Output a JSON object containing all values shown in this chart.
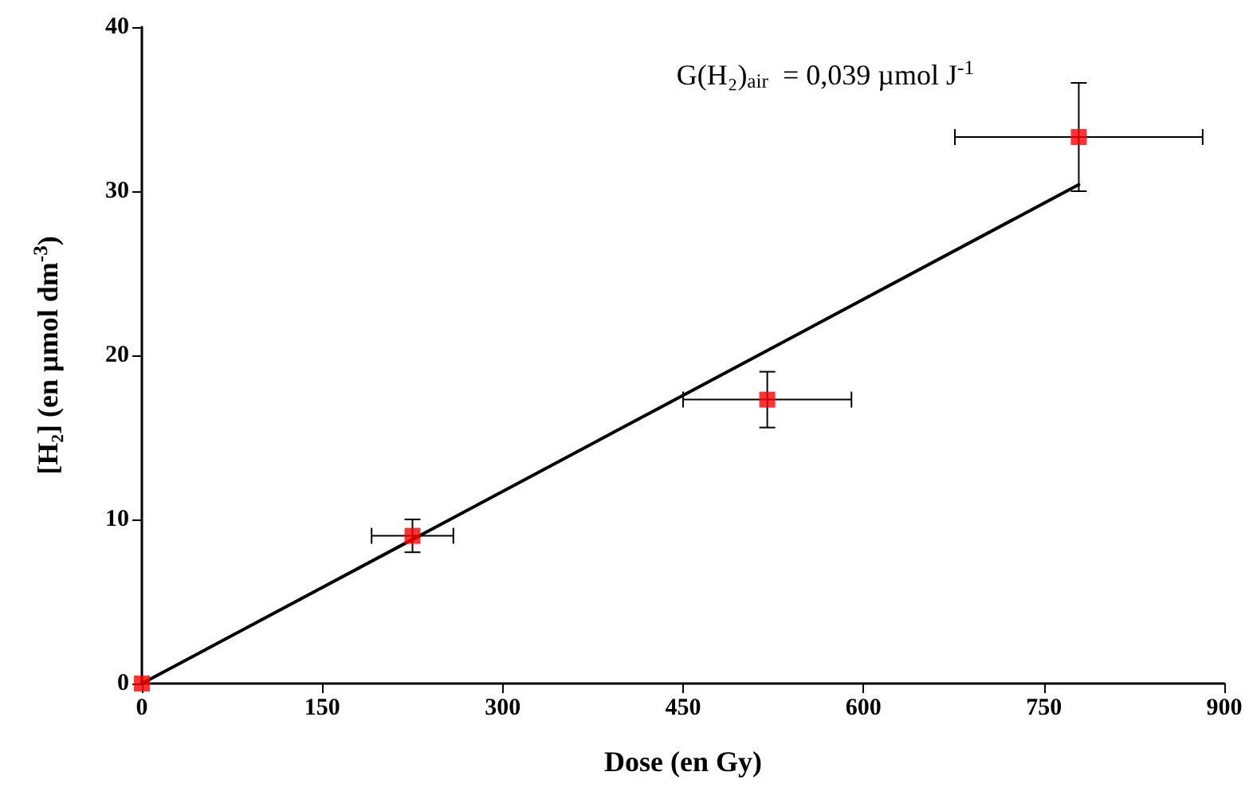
{
  "chart_data": {
    "type": "scatter",
    "xlabel": "Dose (en Gy)",
    "ylabel": "[H₂] (en µmol dm$^{-3}$)",
    "annotations": [
      "G(H₂)$_{air}$  = 0,039 µmol J$^{-1}$"
    ],
    "xlim": [
      0,
      900
    ],
    "xticks": [
      0,
      150,
      300,
      450,
      600,
      750,
      900
    ],
    "ylim": [
      0,
      40
    ],
    "yticks": [
      0,
      10,
      20,
      30,
      40
    ],
    "grid": false,
    "legend": false,
    "marker": "square",
    "series": [
      {
        "type": "line",
        "color": "#000000",
        "x": [
          0,
          779
        ],
        "values": [
          0,
          30.4
        ],
        "marker": "none",
        "line_style": "solid"
      },
      {
        "type": "scatter",
        "color": "#ff0000",
        "x": [
          0,
          225,
          520,
          779
        ],
        "values": [
          0,
          9.0,
          17.3,
          33.3
        ],
        "errors": [
          null,
          1,
          1.7,
          3.3
        ],
        "xerrors": [
          null,
          34,
          70,
          103
        ]
      }
    ]
  }
}
